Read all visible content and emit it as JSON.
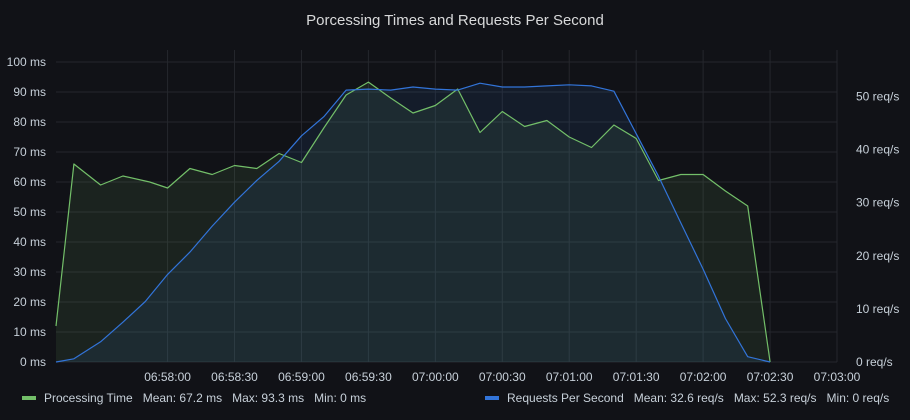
{
  "panel": {
    "title": "Porcessing Times and Requests Per Second"
  },
  "colors": {
    "background": "#111217",
    "grid": "#25272d",
    "processing_time": "#73bf69",
    "requests_per_second": "#3274d9"
  },
  "chart_data": {
    "type": "line",
    "title": "Porcessing Times and Requests Per Second",
    "x_ticks": [
      "06:58:00",
      "06:58:30",
      "06:59:00",
      "06:59:30",
      "07:00:00",
      "07:00:30",
      "07:01:00",
      "07:01:30",
      "07:02:00",
      "07:02:30",
      "07:03:00"
    ],
    "x_range_seconds_from_065800": [
      -50,
      300
    ],
    "left_axis": {
      "ticks": [
        "0 ms",
        "10 ms",
        "20 ms",
        "30 ms",
        "40 ms",
        "50 ms",
        "60 ms",
        "70 ms",
        "80 ms",
        "90 ms",
        "100 ms"
      ],
      "range": [
        0,
        100
      ],
      "unit": "ms"
    },
    "right_axis": {
      "ticks": [
        "0 req/s",
        "10 req/s",
        "20 req/s",
        "30 req/s",
        "40 req/s",
        "50 req/s"
      ],
      "range": [
        0,
        56.5
      ],
      "unit": "req/s"
    },
    "grid": true,
    "fill_area": true,
    "legend_position": "bottom",
    "series": [
      {
        "key": "processing_time",
        "name": "Processing Time",
        "axis": "left",
        "color": "#73bf69",
        "stats": {
          "mean": "Mean: 67.2 ms",
          "max": "Max: 93.3 ms",
          "min": "Min: 0 ms"
        },
        "points": [
          [
            -50,
            12
          ],
          [
            -42,
            66
          ],
          [
            -30,
            59
          ],
          [
            -20,
            62
          ],
          [
            -8,
            60
          ],
          [
            0,
            58
          ],
          [
            10,
            64.5
          ],
          [
            20,
            62.5
          ],
          [
            30,
            65.5
          ],
          [
            40,
            64.5
          ],
          [
            50,
            69.5
          ],
          [
            60,
            66.5
          ],
          [
            70,
            78
          ],
          [
            80,
            89
          ],
          [
            90,
            93.3
          ],
          [
            100,
            88
          ],
          [
            110,
            83
          ],
          [
            120,
            85.5
          ],
          [
            130,
            91
          ],
          [
            140,
            76.5
          ],
          [
            150,
            83.5
          ],
          [
            160,
            78.5
          ],
          [
            170,
            80.5
          ],
          [
            180,
            75
          ],
          [
            190,
            71.5
          ],
          [
            200,
            79
          ],
          [
            210,
            74.5
          ],
          [
            220,
            60.5
          ],
          [
            230,
            62.5
          ],
          [
            240,
            62.5
          ],
          [
            250,
            57
          ],
          [
            260,
            52
          ],
          [
            270,
            0
          ]
        ]
      },
      {
        "key": "requests_per_second",
        "name": "Requests Per Second",
        "axis": "right",
        "color": "#3274d9",
        "stats": {
          "mean": "Mean: 32.6 req/s",
          "max": "Max: 52.3 req/s",
          "min": "Min: 0 req/s"
        },
        "points": [
          [
            -50,
            0
          ],
          [
            -42,
            0.6
          ],
          [
            -30,
            3.8
          ],
          [
            -20,
            7.5
          ],
          [
            -10,
            11.4
          ],
          [
            0,
            16.5
          ],
          [
            10,
            20.7
          ],
          [
            20,
            25.6
          ],
          [
            30,
            30.1
          ],
          [
            40,
            34.2
          ],
          [
            50,
            37.8
          ],
          [
            60,
            42.6
          ],
          [
            70,
            46.2
          ],
          [
            80,
            51.2
          ],
          [
            90,
            51.4
          ],
          [
            100,
            51.2
          ],
          [
            110,
            51.8
          ],
          [
            120,
            51.4
          ],
          [
            130,
            51.2
          ],
          [
            140,
            52.5
          ],
          [
            150,
            51.8
          ],
          [
            160,
            51.8
          ],
          [
            170,
            52
          ],
          [
            180,
            52.2
          ],
          [
            190,
            52
          ],
          [
            200,
            51
          ],
          [
            210,
            43
          ],
          [
            220,
            35
          ],
          [
            230,
            26.2
          ],
          [
            240,
            17.5
          ],
          [
            250,
            8.2
          ],
          [
            260,
            1
          ],
          [
            270,
            0
          ]
        ]
      }
    ]
  }
}
